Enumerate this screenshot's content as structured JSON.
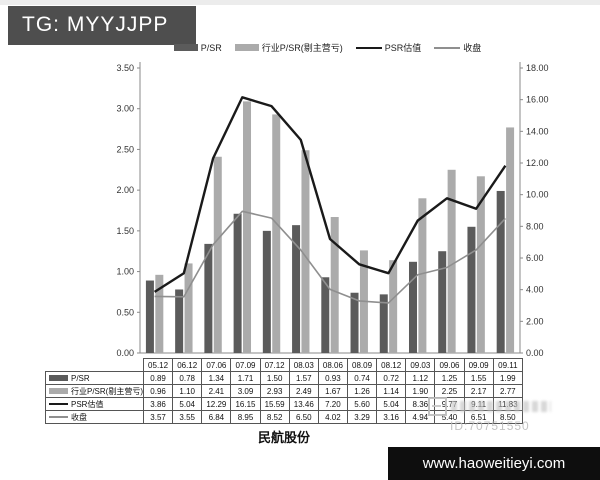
{
  "header": {
    "tag_label": "TG: MYYJJPP"
  },
  "legend": {
    "items": [
      {
        "label": "P/SR",
        "swatch": "bar",
        "color": "#5b5b5b"
      },
      {
        "label": "行业P/SR(剔主营亏)",
        "swatch": "bar",
        "color": "#ababab"
      },
      {
        "label": "PSR估值",
        "swatch": "line",
        "color": "#1a1a1a"
      },
      {
        "label": "收盘",
        "swatch": "line",
        "color": "#8f8f8f"
      }
    ]
  },
  "chart_data": {
    "type": "combo-bar-line",
    "title": "民航股份",
    "categories": [
      "05.12",
      "06.12",
      "07.06",
      "07.09",
      "07.12",
      "08.03",
      "08.06",
      "08.09",
      "08.12",
      "09.03",
      "09.06",
      "09.09",
      "09.11"
    ],
    "series": [
      {
        "name": "P/SR",
        "type": "bar",
        "axis": "left",
        "color": "#5b5b5b",
        "values": [
          0.89,
          0.78,
          1.34,
          1.71,
          1.5,
          1.57,
          0.93,
          0.74,
          0.72,
          1.12,
          1.25,
          1.55,
          1.99
        ]
      },
      {
        "name": "行业P/SR(剔主营亏)",
        "type": "bar",
        "axis": "left",
        "color": "#ababab",
        "values": [
          0.96,
          1.1,
          2.41,
          3.09,
          2.93,
          2.49,
          1.67,
          1.26,
          1.14,
          1.9,
          2.25,
          2.17,
          2.77
        ]
      },
      {
        "name": "PSR估值",
        "type": "line",
        "axis": "right",
        "color": "#1a1a1a",
        "values": [
          3.86,
          5.04,
          12.29,
          16.15,
          15.59,
          13.46,
          7.2,
          5.6,
          5.04,
          8.36,
          9.77,
          9.11,
          11.83
        ]
      },
      {
        "name": "收盘",
        "type": "line",
        "axis": "right",
        "color": "#8f8f8f",
        "values": [
          3.57,
          3.55,
          6.84,
          8.95,
          8.52,
          6.5,
          4.02,
          3.29,
          3.16,
          4.94,
          5.4,
          6.51,
          8.5
        ]
      }
    ],
    "left_axis": {
      "min": 0,
      "max": 3.5,
      "ticks": [
        "0.00",
        "0.50",
        "1.00",
        "1.50",
        "2.00",
        "2.50",
        "3.00",
        "3.50"
      ]
    },
    "right_axis": {
      "min": 0,
      "max": 18.0,
      "ticks": [
        "0.00",
        "2.00",
        "4.00",
        "6.00",
        "8.00",
        "10.00",
        "12.00",
        "14.00",
        "16.00",
        "18.00"
      ]
    },
    "grid": false,
    "legend_position": "top"
  },
  "watermark": {
    "id_text": "ID:70751550"
  },
  "footer": {
    "site_label": "www.haoweitieyi.com"
  }
}
